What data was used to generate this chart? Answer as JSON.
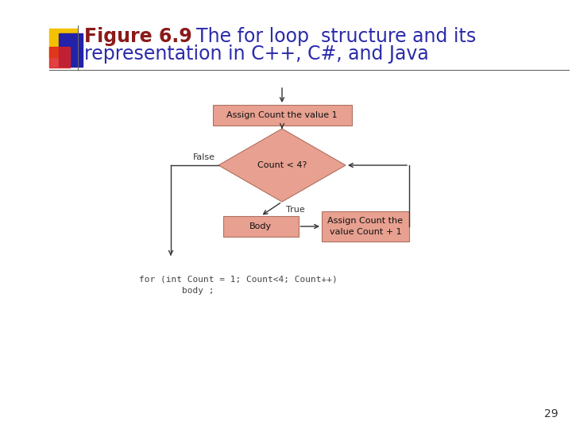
{
  "title_bold": "Figure 6.9",
  "title_rest": "  The for loop  structure and its",
  "title_line2": "representation in C++, C#, and Java",
  "title_color_bold": "#8B1A1A",
  "title_color_rest": "#2B2BAA",
  "bg_color": "#FFFFFF",
  "box_fill": "#E8A090",
  "box_edge": "#B07060",
  "init_box_text": "Assign Count the value 1",
  "cond_text": "Count < 4?",
  "body_text": "Body",
  "assign_text": "Assign Count the\nvalue Count + 1",
  "false_label": "False",
  "true_label": "True",
  "code_line1": "for (int Count = 1; Count<4; Count++)",
  "code_line2": "        body ;",
  "page_number": "29",
  "deco_yellow": "#F5C000",
  "deco_red": "#DD2020",
  "deco_blue": "#2222AA",
  "font_size_title": 17,
  "font_size_box": 8,
  "font_size_label": 8,
  "font_size_code": 8,
  "font_size_page": 10
}
